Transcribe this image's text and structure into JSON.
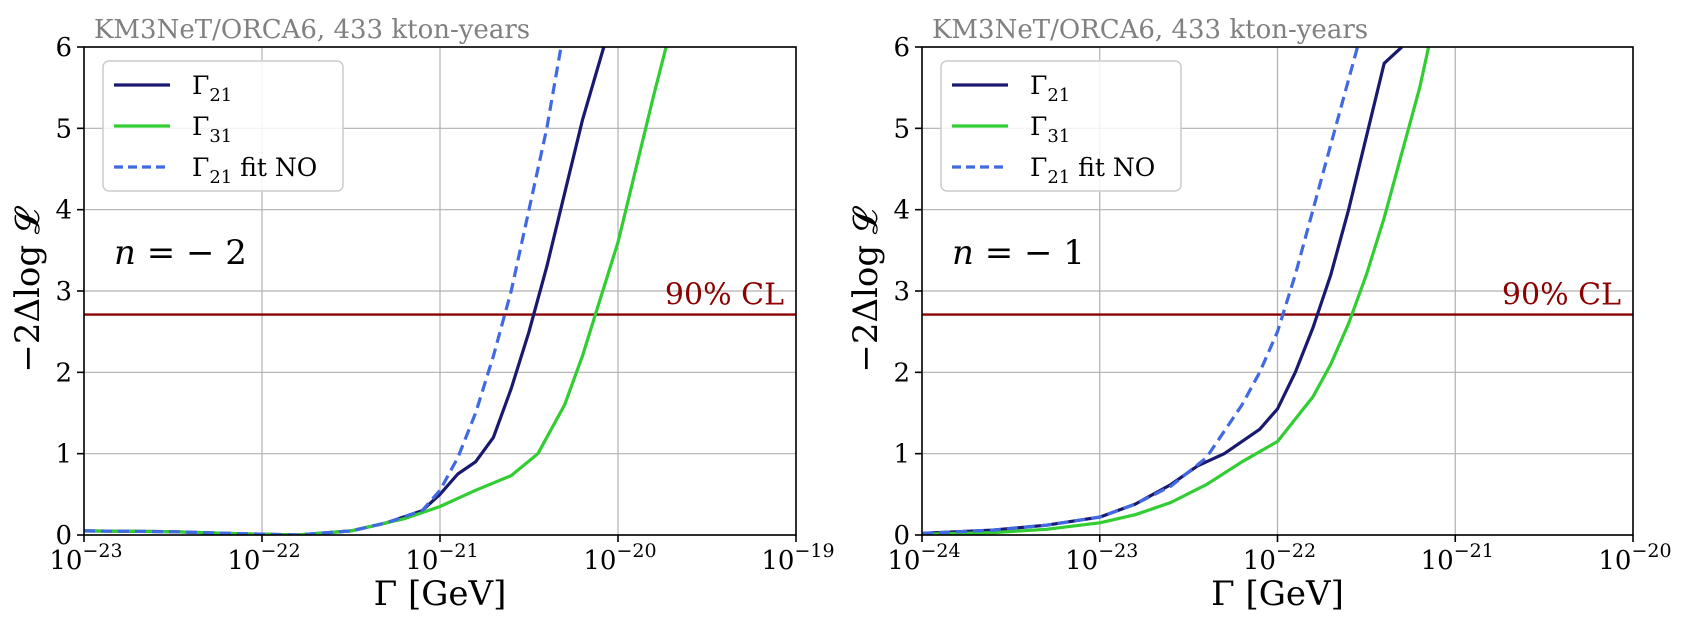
{
  "chart_data": [
    {
      "type": "line",
      "title": "KM3NeT/ORCA6, 433 kton-years",
      "title_prefix": "KM3NeT/ORCA6, ",
      "title_suffix": "433 kton-years",
      "xscale": "log",
      "xlim_exp": [
        -23,
        -19
      ],
      "ylim": [
        0,
        6
      ],
      "xlabel": "Γ [GeV]",
      "ylabel": "−2Δlog 𝓛",
      "x_ticks": [
        {
          "base": "10",
          "exp": "−23"
        },
        {
          "base": "10",
          "exp": "−22"
        },
        {
          "base": "10",
          "exp": "−21"
        },
        {
          "base": "10",
          "exp": "−20"
        },
        {
          "base": "10",
          "exp": "−19"
        }
      ],
      "y_ticks": [
        "0",
        "1",
        "2",
        "3",
        "4",
        "5",
        "6"
      ],
      "grid": true,
      "legend_position": "top-left",
      "annotation": "n = − 2",
      "annotation_var": "n",
      "annotation_rest": " = − 2",
      "cl_line": {
        "y": 2.71,
        "label": "90% CL",
        "color": "#8b0000"
      },
      "series": [
        {
          "name": "Γ",
          "subscript": "21",
          "suffix": "",
          "color": "#191970",
          "dash": false,
          "points": [
            [
              -23,
              0.05
            ],
            [
              -22.5,
              0.04
            ],
            [
              -22.2,
              0.02
            ],
            [
              -21.8,
              0.0
            ],
            [
              -21.5,
              0.05
            ],
            [
              -21.3,
              0.15
            ],
            [
              -21.1,
              0.3
            ],
            [
              -21.0,
              0.5
            ],
            [
              -20.9,
              0.75
            ],
            [
              -20.8,
              0.9
            ],
            [
              -20.7,
              1.2
            ],
            [
              -20.6,
              1.8
            ],
            [
              -20.5,
              2.5
            ],
            [
              -20.4,
              3.3
            ],
            [
              -20.3,
              4.2
            ],
            [
              -20.2,
              5.1
            ],
            [
              -20.08,
              6.0
            ]
          ]
        },
        {
          "name": "Γ",
          "subscript": "31",
          "suffix": "",
          "color": "#32cd32",
          "dash": false,
          "points": [
            [
              -23,
              0.05
            ],
            [
              -22.5,
              0.04
            ],
            [
              -22.2,
              0.02
            ],
            [
              -21.8,
              0.0
            ],
            [
              -21.5,
              0.05
            ],
            [
              -21.2,
              0.2
            ],
            [
              -21.0,
              0.35
            ],
            [
              -20.8,
              0.55
            ],
            [
              -20.6,
              0.73
            ],
            [
              -20.45,
              1.0
            ],
            [
              -20.3,
              1.6
            ],
            [
              -20.2,
              2.2
            ],
            [
              -20.1,
              2.9
            ],
            [
              -20.0,
              3.6
            ],
            [
              -19.9,
              4.5
            ],
            [
              -19.8,
              5.4
            ],
            [
              -19.73,
              6.0
            ]
          ]
        },
        {
          "name": "Γ",
          "subscript": "21",
          "suffix": " fit NO",
          "color": "#4169e1",
          "dash": true,
          "points": [
            [
              -23,
              0.05
            ],
            [
              -22.5,
              0.04
            ],
            [
              -22.2,
              0.02
            ],
            [
              -21.8,
              0.0
            ],
            [
              -21.5,
              0.05
            ],
            [
              -21.3,
              0.15
            ],
            [
              -21.1,
              0.3
            ],
            [
              -21.0,
              0.55
            ],
            [
              -20.9,
              0.95
            ],
            [
              -20.8,
              1.5
            ],
            [
              -20.7,
              2.2
            ],
            [
              -20.6,
              3.0
            ],
            [
              -20.5,
              4.0
            ],
            [
              -20.4,
              5.0
            ],
            [
              -20.32,
              6.0
            ]
          ]
        }
      ]
    },
    {
      "type": "line",
      "title": "KM3NeT/ORCA6, 433 kton-years",
      "title_prefix": "KM3NeT/ORCA6, ",
      "title_suffix": "433 kton-years",
      "xscale": "log",
      "xlim_exp": [
        -24,
        -20
      ],
      "ylim": [
        0,
        6
      ],
      "xlabel": "Γ [GeV]",
      "ylabel": "−2Δlog 𝓛",
      "x_ticks": [
        {
          "base": "10",
          "exp": "−24"
        },
        {
          "base": "10",
          "exp": "−23"
        },
        {
          "base": "10",
          "exp": "−22"
        },
        {
          "base": "10",
          "exp": "−21"
        },
        {
          "base": "10",
          "exp": "−20"
        }
      ],
      "y_ticks": [
        "0",
        "1",
        "2",
        "3",
        "4",
        "5",
        "6"
      ],
      "grid": true,
      "legend_position": "top-left",
      "annotation": "n = − 1",
      "annotation_var": "n",
      "annotation_rest": " = − 1",
      "cl_line": {
        "y": 2.71,
        "label": "90% CL",
        "color": "#8b0000"
      },
      "series": [
        {
          "name": "Γ",
          "subscript": "21",
          "suffix": "",
          "color": "#191970",
          "dash": false,
          "points": [
            [
              -24,
              0.02
            ],
            [
              -23.6,
              0.06
            ],
            [
              -23.3,
              0.12
            ],
            [
              -23.0,
              0.22
            ],
            [
              -22.8,
              0.38
            ],
            [
              -22.6,
              0.62
            ],
            [
              -22.45,
              0.85
            ],
            [
              -22.3,
              1.0
            ],
            [
              -22.1,
              1.3
            ],
            [
              -22.0,
              1.55
            ],
            [
              -21.9,
              2.0
            ],
            [
              -21.8,
              2.55
            ],
            [
              -21.7,
              3.2
            ],
            [
              -21.6,
              4.0
            ],
            [
              -21.5,
              4.9
            ],
            [
              -21.4,
              5.8
            ],
            [
              -21.3,
              6.0
            ]
          ]
        },
        {
          "name": "Γ",
          "subscript": "31",
          "suffix": "",
          "color": "#32cd32",
          "dash": false,
          "points": [
            [
              -24,
              0.01
            ],
            [
              -23.6,
              0.03
            ],
            [
              -23.3,
              0.07
            ],
            [
              -23.0,
              0.15
            ],
            [
              -22.8,
              0.25
            ],
            [
              -22.6,
              0.4
            ],
            [
              -22.4,
              0.62
            ],
            [
              -22.2,
              0.9
            ],
            [
              -22.0,
              1.15
            ],
            [
              -21.8,
              1.7
            ],
            [
              -21.7,
              2.1
            ],
            [
              -21.6,
              2.6
            ],
            [
              -21.5,
              3.2
            ],
            [
              -21.4,
              3.9
            ],
            [
              -21.3,
              4.7
            ],
            [
              -21.2,
              5.5
            ],
            [
              -21.15,
              6.0
            ]
          ]
        },
        {
          "name": "Γ",
          "subscript": "21",
          "suffix": " fit NO",
          "color": "#4169e1",
          "dash": true,
          "points": [
            [
              -24,
              0.02
            ],
            [
              -23.6,
              0.06
            ],
            [
              -23.3,
              0.12
            ],
            [
              -23.0,
              0.22
            ],
            [
              -22.8,
              0.38
            ],
            [
              -22.6,
              0.6
            ],
            [
              -22.4,
              0.95
            ],
            [
              -22.2,
              1.6
            ],
            [
              -22.1,
              2.0
            ],
            [
              -22.0,
              2.5
            ],
            [
              -21.9,
              3.2
            ],
            [
              -21.8,
              4.0
            ],
            [
              -21.7,
              4.8
            ],
            [
              -21.6,
              5.6
            ],
            [
              -21.55,
              6.0
            ]
          ]
        }
      ]
    }
  ]
}
